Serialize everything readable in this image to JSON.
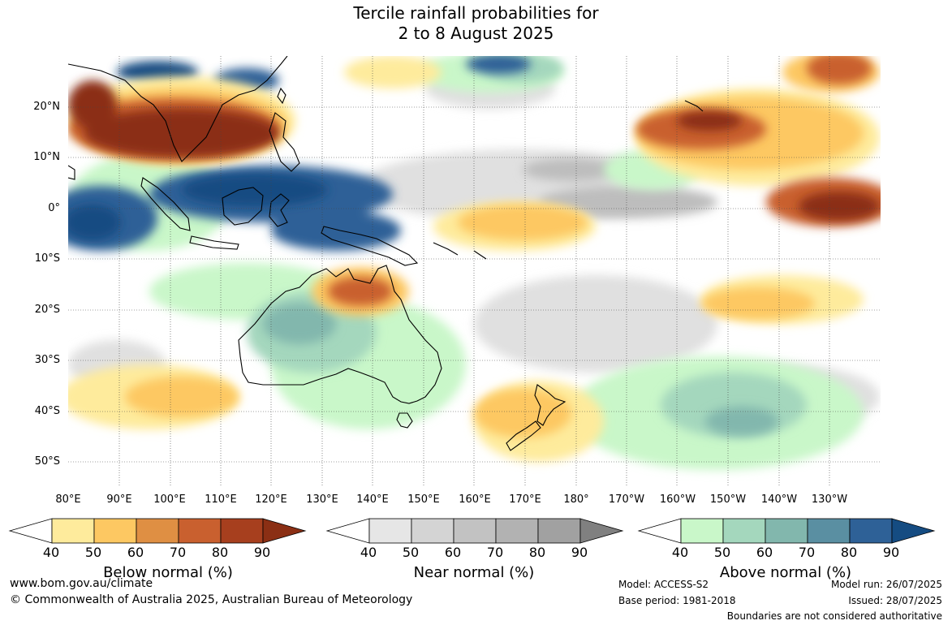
{
  "title_line1": "Tercile rainfall probabilities for",
  "title_line2": "2 to 8 August 2025",
  "lat_labels": [
    "20°N",
    "10°N",
    "0°",
    "10°S",
    "20°S",
    "30°S",
    "40°S",
    "50°S"
  ],
  "lon_labels": [
    "80°E",
    "90°E",
    "100°E",
    "110°E",
    "120°E",
    "130°E",
    "140°E",
    "150°E",
    "160°E",
    "170°E",
    "180°",
    "170°W",
    "160°W",
    "150°W",
    "140°W",
    "130°W"
  ],
  "colorbars": [
    {
      "title": "Below normal (%)",
      "ticks": [
        "40",
        "50",
        "60",
        "70",
        "80",
        "90"
      ],
      "colors": [
        "#ffffff",
        "#feeb9c",
        "#fdc862",
        "#df8f43",
        "#c9602f",
        "#a73f1e",
        "#8b2f14"
      ]
    },
    {
      "title": "Near normal (%)",
      "ticks": [
        "40",
        "50",
        "60",
        "70",
        "80",
        "90"
      ],
      "colors": [
        "#ffffff",
        "#e6e6e6",
        "#d4d4d4",
        "#c2c2c2",
        "#b2b2b2",
        "#a1a1a1",
        "#808080"
      ]
    },
    {
      "title": "Above normal (%)",
      "ticks": [
        "40",
        "50",
        "60",
        "70",
        "80",
        "90"
      ],
      "colors": [
        "#ffffff",
        "#c9f7c9",
        "#a4d7bd",
        "#82b7ad",
        "#5a8fa2",
        "#2e6197",
        "#154c82"
      ]
    }
  ],
  "footer": {
    "url": "www.bom.gov.au/climate",
    "copyright": "© Commonwealth of Australia 2025, Australian Bureau of Meteorology",
    "model": "Model: ACCESS-S2",
    "base_period": "Base period: 1981-2018",
    "model_run": "Model run: 26/07/2025",
    "issued": "Issued: 28/07/2025",
    "disclaimer": "Boundaries are not considered authoritative"
  }
}
